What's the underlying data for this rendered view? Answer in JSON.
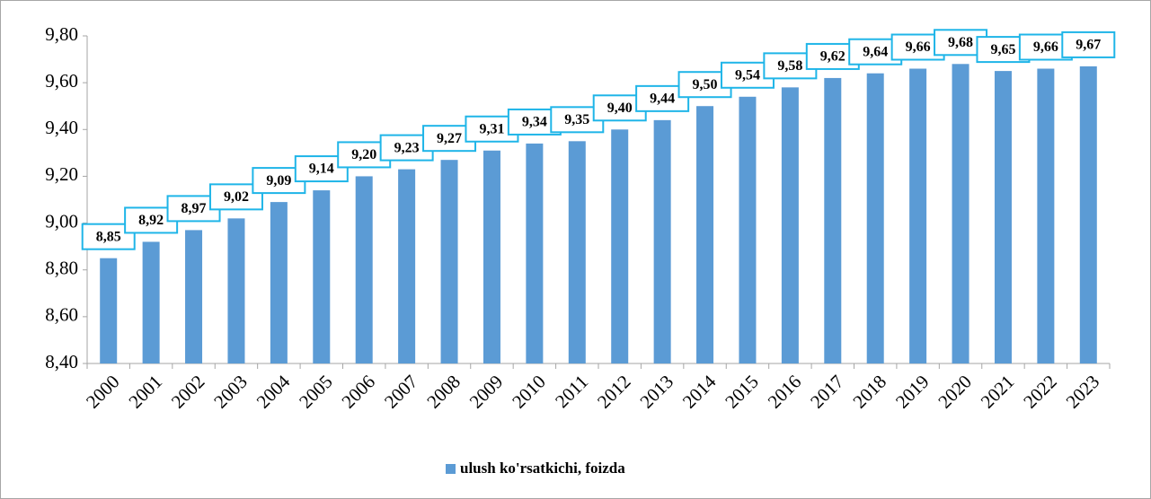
{
  "chart_data": {
    "type": "bar",
    "categories": [
      "2000",
      "2001",
      "2002",
      "2003",
      "2004",
      "2005",
      "2006",
      "2007",
      "2008",
      "2009",
      "2010",
      "2011",
      "2012",
      "2013",
      "2014",
      "2015",
      "2016",
      "2017",
      "2018",
      "2019",
      "2020",
      "2021",
      "2022",
      "2023"
    ],
    "series": [
      {
        "name": "ulush ko'rsatkichi, foizda",
        "color": "#5b9bd5",
        "values": [
          8.85,
          8.92,
          8.97,
          9.02,
          9.09,
          9.14,
          9.2,
          9.23,
          9.27,
          9.31,
          9.34,
          9.35,
          9.4,
          9.44,
          9.5,
          9.54,
          9.58,
          9.62,
          9.64,
          9.66,
          9.68,
          9.65,
          9.66,
          9.67
        ],
        "value_labels": [
          "8,85",
          "8,92",
          "8,97",
          "9,02",
          "9,09",
          "9,14",
          "9,20",
          "9,23",
          "9,27",
          "9,31",
          "9,34",
          "9,35",
          "9,40",
          "9,44",
          "9,50",
          "9,54",
          "9,58",
          "9,62",
          "9,64",
          "9,66",
          "9,68",
          "9,65",
          "9,66",
          "9,67"
        ]
      }
    ],
    "ylim": [
      8.4,
      9.8
    ],
    "yticks": [
      {
        "value": 8.4,
        "label": "8,40"
      },
      {
        "value": 8.6,
        "label": "8,60"
      },
      {
        "value": 8.8,
        "label": "8,80"
      },
      {
        "value": 9.0,
        "label": "9,00"
      },
      {
        "value": 9.2,
        "label": "9,20"
      },
      {
        "value": 9.4,
        "label": "9,40"
      },
      {
        "value": 9.6,
        "label": "9,60"
      },
      {
        "value": 9.8,
        "label": "9,80"
      }
    ],
    "legend": "bottom"
  }
}
